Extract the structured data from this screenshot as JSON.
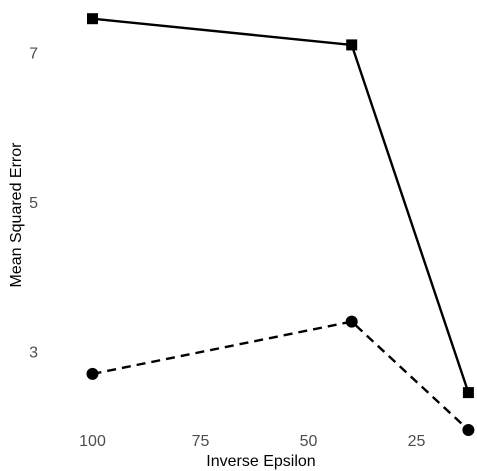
{
  "chart_data": {
    "type": "line",
    "xlabel": "Inverse Epsilon",
    "ylabel": "Mean Squared Error",
    "x_axis_reversed": true,
    "xlim": [
      111,
      11
    ],
    "ylim": [
      1.95,
      7.7
    ],
    "x_ticks": [
      100,
      75,
      50,
      25
    ],
    "y_ticks": [
      3,
      5,
      7
    ],
    "grid": false,
    "legend": "none",
    "series": [
      {
        "marker": "square",
        "line_style": "solid",
        "color": "#000000",
        "x": [
          100,
          40,
          13
        ],
        "y": [
          7.45,
          7.1,
          2.45
        ]
      },
      {
        "marker": "circle",
        "line_style": "dashed",
        "color": "#000000",
        "x": [
          100,
          40,
          13
        ],
        "y": [
          2.7,
          3.4,
          1.95
        ]
      }
    ]
  }
}
